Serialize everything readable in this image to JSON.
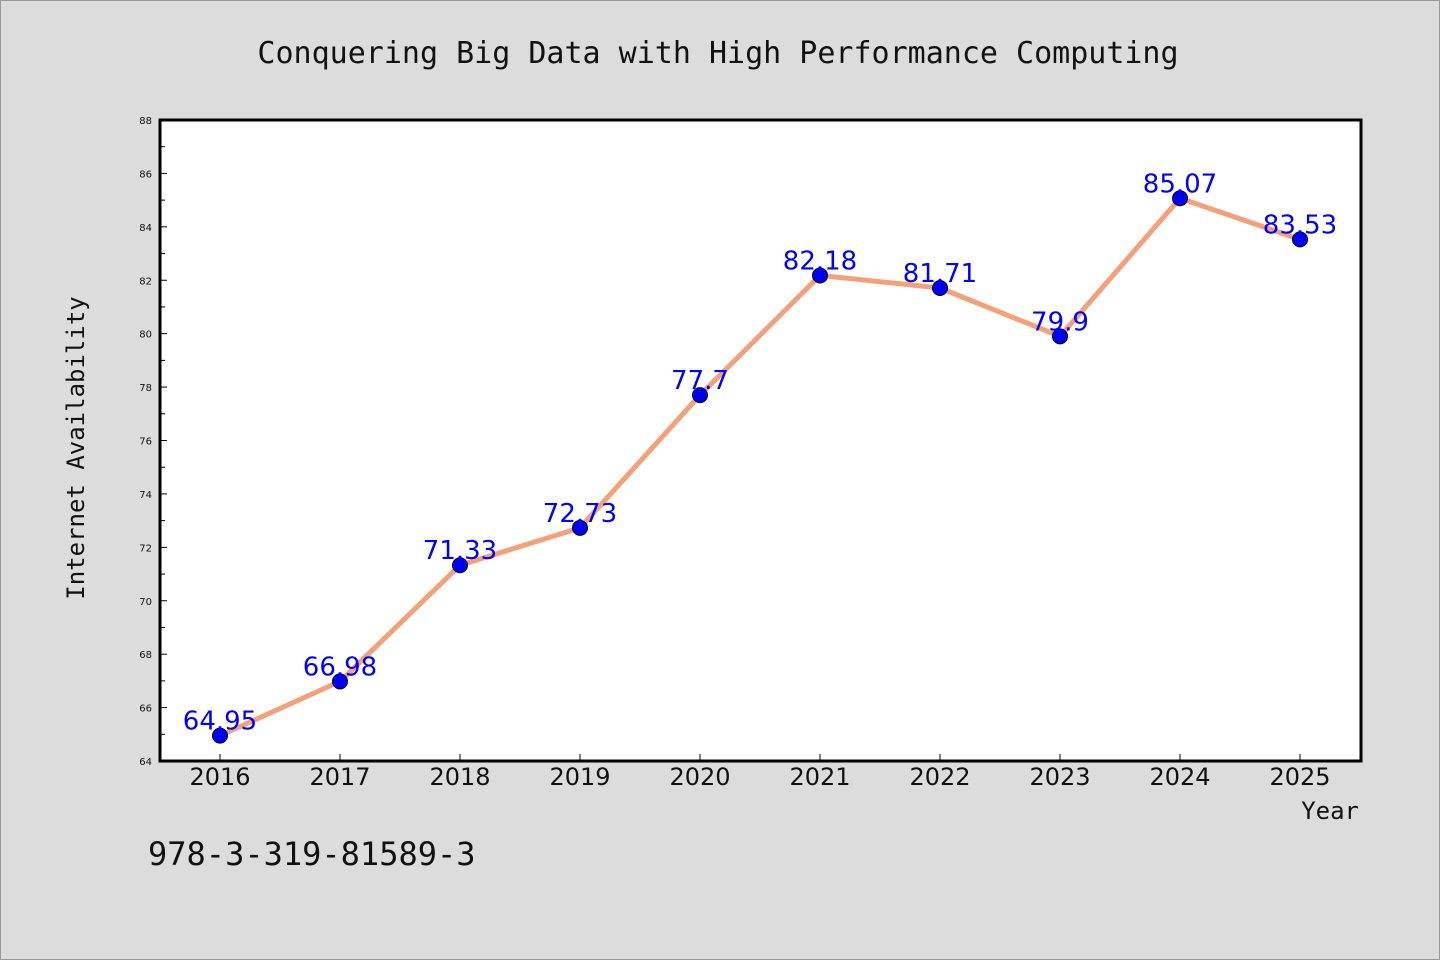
{
  "chart_data": {
    "type": "line",
    "title": "Conquering Big Data with High Performance Computing",
    "xlabel": "Year",
    "ylabel": "Internet Availability",
    "categories": [
      "2016",
      "2017",
      "2018",
      "2019",
      "2020",
      "2021",
      "2022",
      "2023",
      "2024",
      "2025"
    ],
    "series": [
      {
        "values": [
          64.95,
          66.98,
          71.33,
          72.73,
          77.7,
          82.18,
          81.71,
          79.9,
          85.07,
          83.53
        ]
      }
    ],
    "data_labels": [
      "64.95",
      "66.98",
      "71.33",
      "72.73",
      "77.7",
      "82.18",
      "81.71",
      "79.9",
      "85.07",
      "83.53"
    ],
    "ylim": [
      64,
      88
    ],
    "yticks": [
      64,
      66,
      68,
      70,
      72,
      74,
      76,
      78,
      80,
      82,
      84,
      86,
      88
    ],
    "grid": false,
    "colors": {
      "line": "#f4a07a",
      "marker": "#0000ee",
      "data_label": "#0000ff",
      "plot_background": "#ffffff",
      "figure_background": "#dcdcdc"
    }
  },
  "footer": {
    "isbn": "978-3-319-81589-3"
  }
}
